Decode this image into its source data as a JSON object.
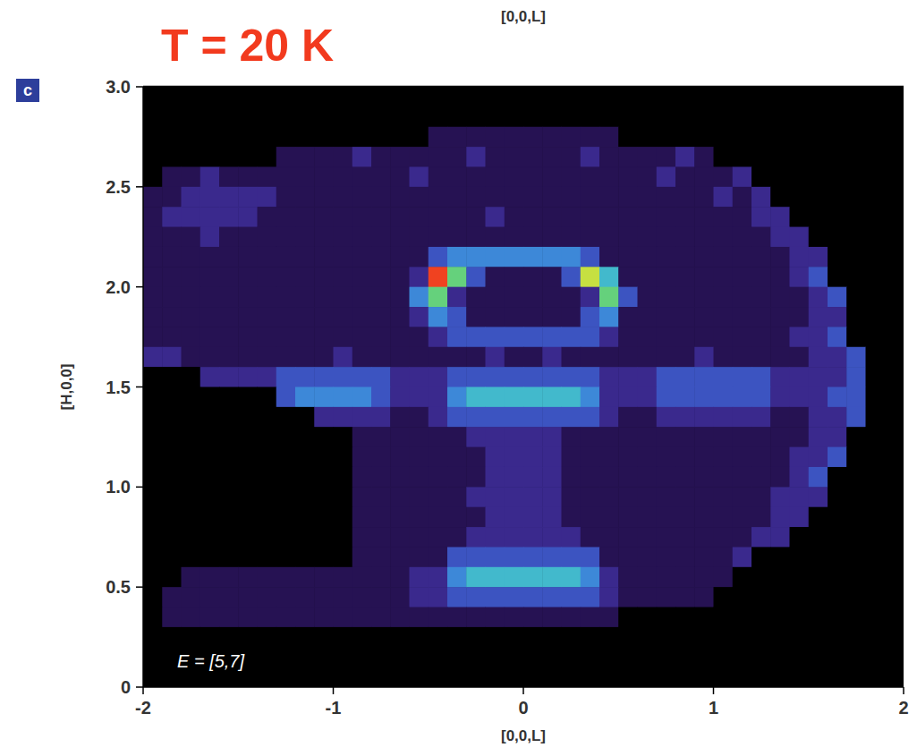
{
  "chart_data": {
    "type": "heatmap",
    "title": "T = 20 K",
    "panel_label": "c",
    "x_label": "[0,0,L]",
    "x2_label": "[0,0,L]",
    "y_label": "[H,0,0]",
    "annotations": [
      "E = [5,7]"
    ],
    "xlim": [
      -2,
      2
    ],
    "ylim": [
      0,
      3
    ],
    "xticks": [
      -2,
      -1,
      0,
      1,
      2
    ],
    "yticks": [
      0,
      0.5,
      {
        "value": 1,
        "label": "1.0"
      },
      1.5,
      {
        "value": 2,
        "label": "2.0"
      },
      2.5,
      {
        "value": 3,
        "label": "3.0"
      }
    ],
    "zlim": [
      0,
      9
    ],
    "x": [
      -1.95,
      -1.85,
      -1.75,
      -1.65,
      -1.55,
      -1.45,
      -1.35,
      -1.25,
      -1.15,
      -1.05,
      -0.95,
      -0.85,
      -0.75,
      -0.65,
      -0.55,
      -0.45,
      -0.35,
      -0.25,
      -0.15,
      -0.05,
      0.05,
      0.15,
      0.25,
      0.35,
      0.45,
      0.55,
      0.65,
      0.75,
      0.85,
      0.95,
      1.05,
      1.15,
      1.25,
      1.35,
      1.45,
      1.55,
      1.65,
      1.75,
      1.85,
      1.95
    ],
    "y": [
      2.95,
      2.85,
      2.75,
      2.65,
      2.55,
      2.45,
      2.35,
      2.25,
      2.15,
      2.05,
      1.95,
      1.85,
      1.75,
      1.65,
      1.55,
      1.45,
      1.35,
      1.25,
      1.15,
      1.05,
      0.95,
      0.85,
      0.75,
      0.65,
      0.55,
      0.45,
      0.35,
      0.25,
      0.15,
      0.05
    ],
    "z": [
      [
        0,
        0,
        0,
        0,
        0,
        0,
        0,
        0,
        0,
        0,
        0,
        0,
        0,
        0,
        0,
        0,
        0,
        0,
        0,
        0,
        0,
        0,
        0,
        0,
        0,
        0,
        0,
        0,
        0,
        0,
        0,
        0,
        0,
        0,
        0,
        0,
        0,
        0,
        0,
        0
      ],
      [
        0,
        0,
        0,
        0,
        0,
        0,
        0,
        0,
        0,
        0,
        0,
        0,
        0,
        0,
        0,
        0,
        0,
        0,
        0,
        0,
        0,
        0,
        0,
        0,
        0,
        0,
        0,
        0,
        0,
        0,
        0,
        0,
        0,
        0,
        0,
        0,
        0,
        0,
        0,
        0
      ],
      [
        0,
        0,
        0,
        0,
        0,
        0,
        0,
        0,
        0,
        0,
        0,
        0,
        0,
        0,
        0,
        1,
        1,
        1,
        1,
        1,
        1,
        1,
        1,
        1,
        1,
        0,
        0,
        0,
        0,
        0,
        0,
        0,
        0,
        0,
        0,
        0,
        0,
        0,
        0,
        0
      ],
      [
        0,
        0,
        0,
        0,
        0,
        0,
        0,
        1,
        1,
        1,
        1,
        2,
        1,
        1,
        1,
        1,
        1,
        2,
        1,
        1,
        1,
        1,
        1,
        2,
        1,
        1,
        1,
        1,
        2,
        1,
        0,
        0,
        0,
        0,
        0,
        0,
        0,
        0,
        0,
        0
      ],
      [
        0,
        1,
        1,
        2,
        1,
        1,
        1,
        1,
        1,
        1,
        1,
        1,
        1,
        1,
        2,
        1,
        1,
        1,
        1,
        1,
        1,
        1,
        1,
        1,
        1,
        1,
        1,
        2,
        1,
        1,
        1,
        2,
        0,
        0,
        0,
        0,
        0,
        0,
        0,
        0
      ],
      [
        1,
        1,
        2,
        2,
        2,
        2,
        2,
        1,
        1,
        1,
        1,
        1,
        1,
        1,
        1,
        1,
        1,
        1,
        1,
        1,
        1,
        1,
        1,
        1,
        1,
        1,
        1,
        1,
        1,
        1,
        2,
        1,
        2,
        0,
        0,
        0,
        0,
        0,
        0,
        0
      ],
      [
        1,
        2,
        2,
        2,
        2,
        2,
        1,
        1,
        1,
        1,
        1,
        1,
        1,
        1,
        1,
        1,
        1,
        1,
        2,
        1,
        1,
        1,
        1,
        1,
        1,
        1,
        1,
        1,
        1,
        1,
        1,
        1,
        2,
        2,
        0,
        0,
        0,
        0,
        0,
        0
      ],
      [
        1,
        1,
        1,
        2,
        1,
        1,
        1,
        1,
        1,
        1,
        1,
        1,
        1,
        1,
        1,
        1,
        1,
        1,
        1,
        1,
        1,
        1,
        1,
        1,
        1,
        1,
        1,
        1,
        1,
        1,
        1,
        1,
        1,
        2,
        2,
        0,
        0,
        0,
        0,
        0
      ],
      [
        1,
        1,
        1,
        1,
        1,
        1,
        1,
        1,
        1,
        1,
        1,
        1,
        1,
        1,
        1,
        3,
        4,
        4,
        4,
        4,
        4,
        4,
        4,
        3,
        1,
        1,
        1,
        1,
        1,
        1,
        1,
        1,
        1,
        1,
        2,
        2,
        0,
        0,
        0,
        0
      ],
      [
        1,
        1,
        1,
        1,
        1,
        1,
        1,
        1,
        1,
        1,
        1,
        1,
        1,
        1,
        2,
        8,
        6,
        3,
        1,
        1,
        1,
        1,
        3,
        7,
        5,
        1,
        1,
        1,
        1,
        1,
        1,
        1,
        1,
        1,
        2,
        3,
        0,
        0,
        0,
        0
      ],
      [
        1,
        1,
        1,
        1,
        1,
        1,
        1,
        1,
        1,
        1,
        1,
        1,
        1,
        1,
        4,
        6,
        2,
        1,
        1,
        1,
        1,
        1,
        1,
        2,
        6,
        3,
        1,
        1,
        1,
        1,
        1,
        1,
        1,
        1,
        1,
        2,
        3,
        0,
        0,
        0
      ],
      [
        1,
        1,
        1,
        1,
        1,
        1,
        1,
        1,
        1,
        1,
        1,
        1,
        1,
        1,
        2,
        4,
        3,
        1,
        1,
        1,
        1,
        1,
        1,
        3,
        4,
        1,
        1,
        1,
        1,
        1,
        1,
        1,
        1,
        1,
        1,
        2,
        2,
        0,
        0,
        0
      ],
      [
        1,
        1,
        1,
        1,
        1,
        1,
        1,
        1,
        1,
        1,
        1,
        1,
        1,
        1,
        1,
        2,
        3,
        3,
        3,
        3,
        3,
        3,
        3,
        3,
        2,
        1,
        1,
        1,
        1,
        1,
        1,
        1,
        1,
        1,
        2,
        2,
        3,
        0,
        0,
        0
      ],
      [
        2,
        2,
        1,
        1,
        1,
        1,
        1,
        1,
        1,
        1,
        2,
        1,
        1,
        1,
        1,
        1,
        1,
        1,
        2,
        1,
        1,
        2,
        1,
        1,
        1,
        1,
        1,
        1,
        1,
        2,
        1,
        1,
        1,
        1,
        1,
        2,
        2,
        3,
        0,
        0
      ],
      [
        0,
        0,
        0,
        2,
        2,
        2,
        2,
        3,
        3,
        3,
        3,
        3,
        3,
        2,
        2,
        2,
        3,
        3,
        3,
        3,
        3,
        3,
        3,
        3,
        2,
        2,
        2,
        3,
        3,
        3,
        3,
        3,
        3,
        2,
        2,
        2,
        2,
        3,
        0,
        0
      ],
      [
        0,
        0,
        0,
        0,
        0,
        0,
        0,
        3,
        4,
        4,
        4,
        4,
        3,
        2,
        2,
        2,
        4,
        5,
        5,
        5,
        5,
        5,
        5,
        4,
        2,
        2,
        2,
        3,
        3,
        3,
        3,
        3,
        3,
        2,
        2,
        2,
        3,
        3,
        0,
        0
      ],
      [
        0,
        0,
        0,
        0,
        0,
        0,
        0,
        0,
        0,
        2,
        2,
        2,
        2,
        1,
        1,
        2,
        3,
        3,
        3,
        3,
        3,
        3,
        3,
        3,
        2,
        1,
        1,
        2,
        2,
        2,
        2,
        2,
        2,
        1,
        1,
        2,
        2,
        3,
        0,
        0
      ],
      [
        0,
        0,
        0,
        0,
        0,
        0,
        0,
        0,
        0,
        0,
        0,
        1,
        1,
        1,
        1,
        1,
        1,
        2,
        2,
        2,
        2,
        2,
        1,
        1,
        1,
        1,
        1,
        1,
        1,
        1,
        1,
        1,
        1,
        1,
        1,
        2,
        2,
        0,
        0,
        0
      ],
      [
        0,
        0,
        0,
        0,
        0,
        0,
        0,
        0,
        0,
        0,
        0,
        1,
        1,
        1,
        1,
        1,
        1,
        1,
        2,
        2,
        2,
        2,
        1,
        1,
        1,
        1,
        1,
        1,
        1,
        1,
        1,
        1,
        1,
        1,
        2,
        2,
        3,
        0,
        0,
        0
      ],
      [
        0,
        0,
        0,
        0,
        0,
        0,
        0,
        0,
        0,
        0,
        0,
        1,
        1,
        1,
        1,
        1,
        1,
        1,
        2,
        2,
        2,
        2,
        1,
        1,
        1,
        1,
        1,
        1,
        1,
        1,
        1,
        1,
        1,
        1,
        2,
        3,
        0,
        0,
        0,
        0
      ],
      [
        0,
        0,
        0,
        0,
        0,
        0,
        0,
        0,
        0,
        0,
        0,
        1,
        1,
        1,
        1,
        1,
        1,
        2,
        2,
        2,
        2,
        2,
        1,
        1,
        1,
        1,
        1,
        1,
        1,
        1,
        1,
        1,
        1,
        2,
        2,
        2,
        0,
        0,
        0,
        0
      ],
      [
        0,
        0,
        0,
        0,
        0,
        0,
        0,
        0,
        0,
        0,
        0,
        1,
        1,
        1,
        1,
        1,
        1,
        1,
        2,
        2,
        2,
        2,
        1,
        1,
        1,
        1,
        1,
        1,
        1,
        1,
        1,
        1,
        1,
        2,
        2,
        0,
        0,
        0,
        0,
        0
      ],
      [
        0,
        0,
        0,
        0,
        0,
        0,
        0,
        0,
        0,
        0,
        0,
        1,
        1,
        1,
        1,
        1,
        1,
        2,
        2,
        2,
        2,
        2,
        2,
        1,
        1,
        1,
        1,
        1,
        1,
        1,
        1,
        1,
        2,
        2,
        0,
        0,
        0,
        0,
        0,
        0
      ],
      [
        0,
        0,
        0,
        0,
        0,
        0,
        0,
        0,
        0,
        0,
        0,
        1,
        1,
        1,
        1,
        1,
        3,
        3,
        3,
        3,
        3,
        3,
        3,
        3,
        1,
        1,
        1,
        1,
        1,
        1,
        1,
        2,
        0,
        0,
        0,
        0,
        0,
        0,
        0,
        0
      ],
      [
        0,
        0,
        1,
        1,
        1,
        1,
        1,
        1,
        1,
        1,
        1,
        1,
        1,
        1,
        2,
        2,
        4,
        5,
        5,
        5,
        5,
        5,
        5,
        4,
        2,
        1,
        1,
        1,
        1,
        1,
        1,
        0,
        0,
        0,
        0,
        0,
        0,
        0,
        0,
        0
      ],
      [
        0,
        1,
        1,
        1,
        1,
        1,
        1,
        1,
        1,
        1,
        1,
        1,
        1,
        1,
        2,
        2,
        3,
        3,
        3,
        3,
        3,
        3,
        3,
        3,
        2,
        1,
        1,
        1,
        1,
        1,
        0,
        0,
        0,
        0,
        0,
        0,
        0,
        0,
        0,
        0
      ],
      [
        0,
        1,
        1,
        1,
        1,
        1,
        1,
        1,
        1,
        1,
        1,
        1,
        1,
        1,
        1,
        1,
        1,
        1,
        1,
        1,
        1,
        1,
        1,
        1,
        1,
        0,
        0,
        0,
        0,
        0,
        0,
        0,
        0,
        0,
        0,
        0,
        0,
        0,
        0,
        0
      ],
      [
        0,
        0,
        0,
        0,
        0,
        0,
        0,
        0,
        0,
        0,
        0,
        0,
        0,
        0,
        0,
        0,
        0,
        0,
        0,
        0,
        0,
        0,
        0,
        0,
        0,
        0,
        0,
        0,
        0,
        0,
        0,
        0,
        0,
        0,
        0,
        0,
        0,
        0,
        0,
        0
      ],
      [
        0,
        0,
        0,
        0,
        0,
        0,
        0,
        0,
        0,
        0,
        0,
        0,
        0,
        0,
        0,
        0,
        0,
        0,
        0,
        0,
        0,
        0,
        0,
        0,
        0,
        0,
        0,
        0,
        0,
        0,
        0,
        0,
        0,
        0,
        0,
        0,
        0,
        0,
        0,
        0
      ],
      [
        0,
        0,
        0,
        0,
        0,
        0,
        0,
        0,
        0,
        0,
        0,
        0,
        0,
        0,
        0,
        0,
        0,
        0,
        0,
        0,
        0,
        0,
        0,
        0,
        0,
        0,
        0,
        0,
        0,
        0,
        0,
        0,
        0,
        0,
        0,
        0,
        0,
        0,
        0,
        0
      ]
    ]
  }
}
